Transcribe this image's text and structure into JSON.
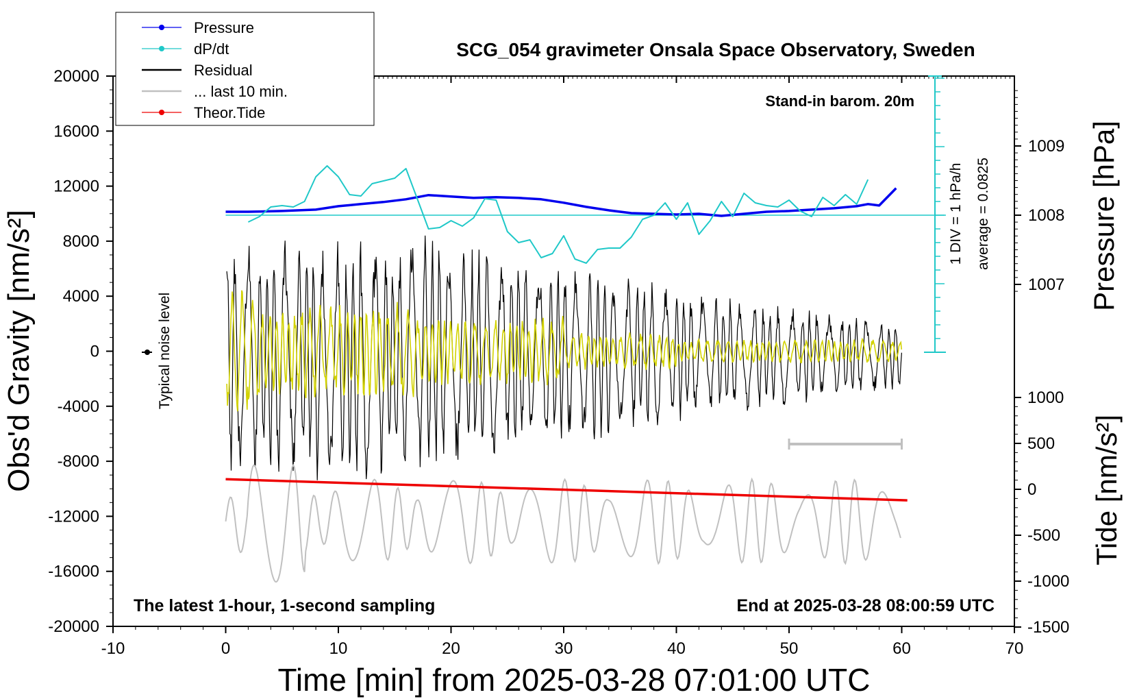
{
  "chart_data": {
    "type": "line",
    "title": "SCG_054 gravimeter Onsala Space Observatory, Sweden",
    "xlabel": "Time [min] from 2025-03-28 07:01:00 UTC",
    "ylabel_left": "Obs'd Gravity [nm/s²]",
    "ylabel_right_top": "Pressure [hPa]",
    "ylabel_right_bottom": "Tide [nm/s²]",
    "xlim": [
      -10,
      70
    ],
    "ylim_left": [
      -20000,
      20000
    ],
    "x_ticks": [
      "-10",
      "0",
      "10",
      "20",
      "30",
      "40",
      "50",
      "60",
      "70"
    ],
    "y_ticks_left": [
      "20000",
      "16000",
      "12000",
      "8000",
      "4000",
      "0",
      "-4000",
      "-8000",
      "-12000",
      "-16000",
      "-20000"
    ],
    "pressure_ticks": [
      "1009",
      "1008",
      "1007"
    ],
    "tide_ticks": [
      "1000",
      "500",
      "0",
      "-500",
      "-1000",
      "-1500"
    ],
    "legend": [
      {
        "label": "Pressure",
        "color": "#0000ee",
        "style": "line-dot"
      },
      {
        "label": "dP/dt",
        "color": "#1fc8c8",
        "style": "line-dot"
      },
      {
        "label": "Residual",
        "color": "#000000",
        "style": "line"
      },
      {
        "label": "... last 10 min.",
        "color": "#c0c0c0",
        "style": "line"
      },
      {
        "label": "Theor.Tide",
        "color": "#ee0000",
        "style": "line-dot"
      }
    ],
    "annotations": {
      "barometer": "Stand-in barom. 20m",
      "div_scale": "1 DIV = 1 hPa/h",
      "average": "average = 0.0825",
      "noise": "Typical noise level",
      "bottom_left": "The latest 1-hour, 1-second sampling",
      "bottom_right": "End at 2025-03-28 08:00:59 UTC"
    },
    "series": [
      {
        "name": "Pressure",
        "unit": "hPa",
        "x": [
          0,
          2,
          5,
          8,
          10,
          12,
          14,
          16,
          18,
          20,
          22,
          24,
          26,
          28,
          30,
          32,
          34,
          36,
          38,
          40,
          42,
          44,
          46,
          48,
          50,
          52,
          54,
          56,
          57,
          58,
          59.5
        ],
        "y": [
          1008.05,
          1008.05,
          1008.06,
          1008.08,
          1008.13,
          1008.16,
          1008.19,
          1008.23,
          1008.29,
          1008.27,
          1008.25,
          1008.26,
          1008.25,
          1008.23,
          1008.18,
          1008.12,
          1008.07,
          1008.03,
          1008.02,
          1008.01,
          1008.02,
          1007.99,
          1008.02,
          1008.05,
          1008.06,
          1008.08,
          1008.1,
          1008.13,
          1008.16,
          1008.14,
          1008.39
        ]
      },
      {
        "name": "dP/dt",
        "unit": "hPa/h",
        "x": [
          2,
          3,
          4,
          5,
          6,
          7,
          8,
          9,
          10,
          11,
          12,
          13,
          14,
          15,
          16,
          17,
          18,
          19,
          20,
          21,
          22,
          23,
          24,
          25,
          26,
          27,
          28,
          29,
          30,
          31,
          32,
          33,
          34,
          35,
          36,
          37,
          38,
          39,
          40,
          41,
          42,
          43,
          44,
          45,
          46,
          47,
          48,
          49,
          50,
          51,
          52,
          53,
          54,
          55,
          56,
          57
        ],
        "y": [
          -0.5,
          -0.1,
          0.6,
          0.7,
          0.6,
          1.0,
          2.8,
          3.6,
          2.8,
          1.5,
          1.4,
          2.3,
          2.5,
          2.7,
          3.4,
          1.2,
          -1.0,
          -0.9,
          -0.4,
          -0.8,
          -0.2,
          1.2,
          1.1,
          -1.2,
          -2.0,
          -1.8,
          -3.1,
          -2.8,
          -1.5,
          -3.2,
          -3.5,
          -2.5,
          -2.4,
          -2.4,
          -1.6,
          -0.3,
          0.0,
          0.9,
          -0.3,
          0.9,
          -1.4,
          -0.4,
          1.0,
          -0.1,
          1.6,
          0.9,
          0.7,
          0.6,
          1.1,
          0.3,
          -0.1,
          1.3,
          0.7,
          1.5,
          0.8,
          2.6
        ]
      },
      {
        "name": "Theor.Tide",
        "unit": "nm/s²",
        "x": [
          0,
          60.5
        ],
        "y": [
          110,
          -120
        ]
      }
    ]
  }
}
